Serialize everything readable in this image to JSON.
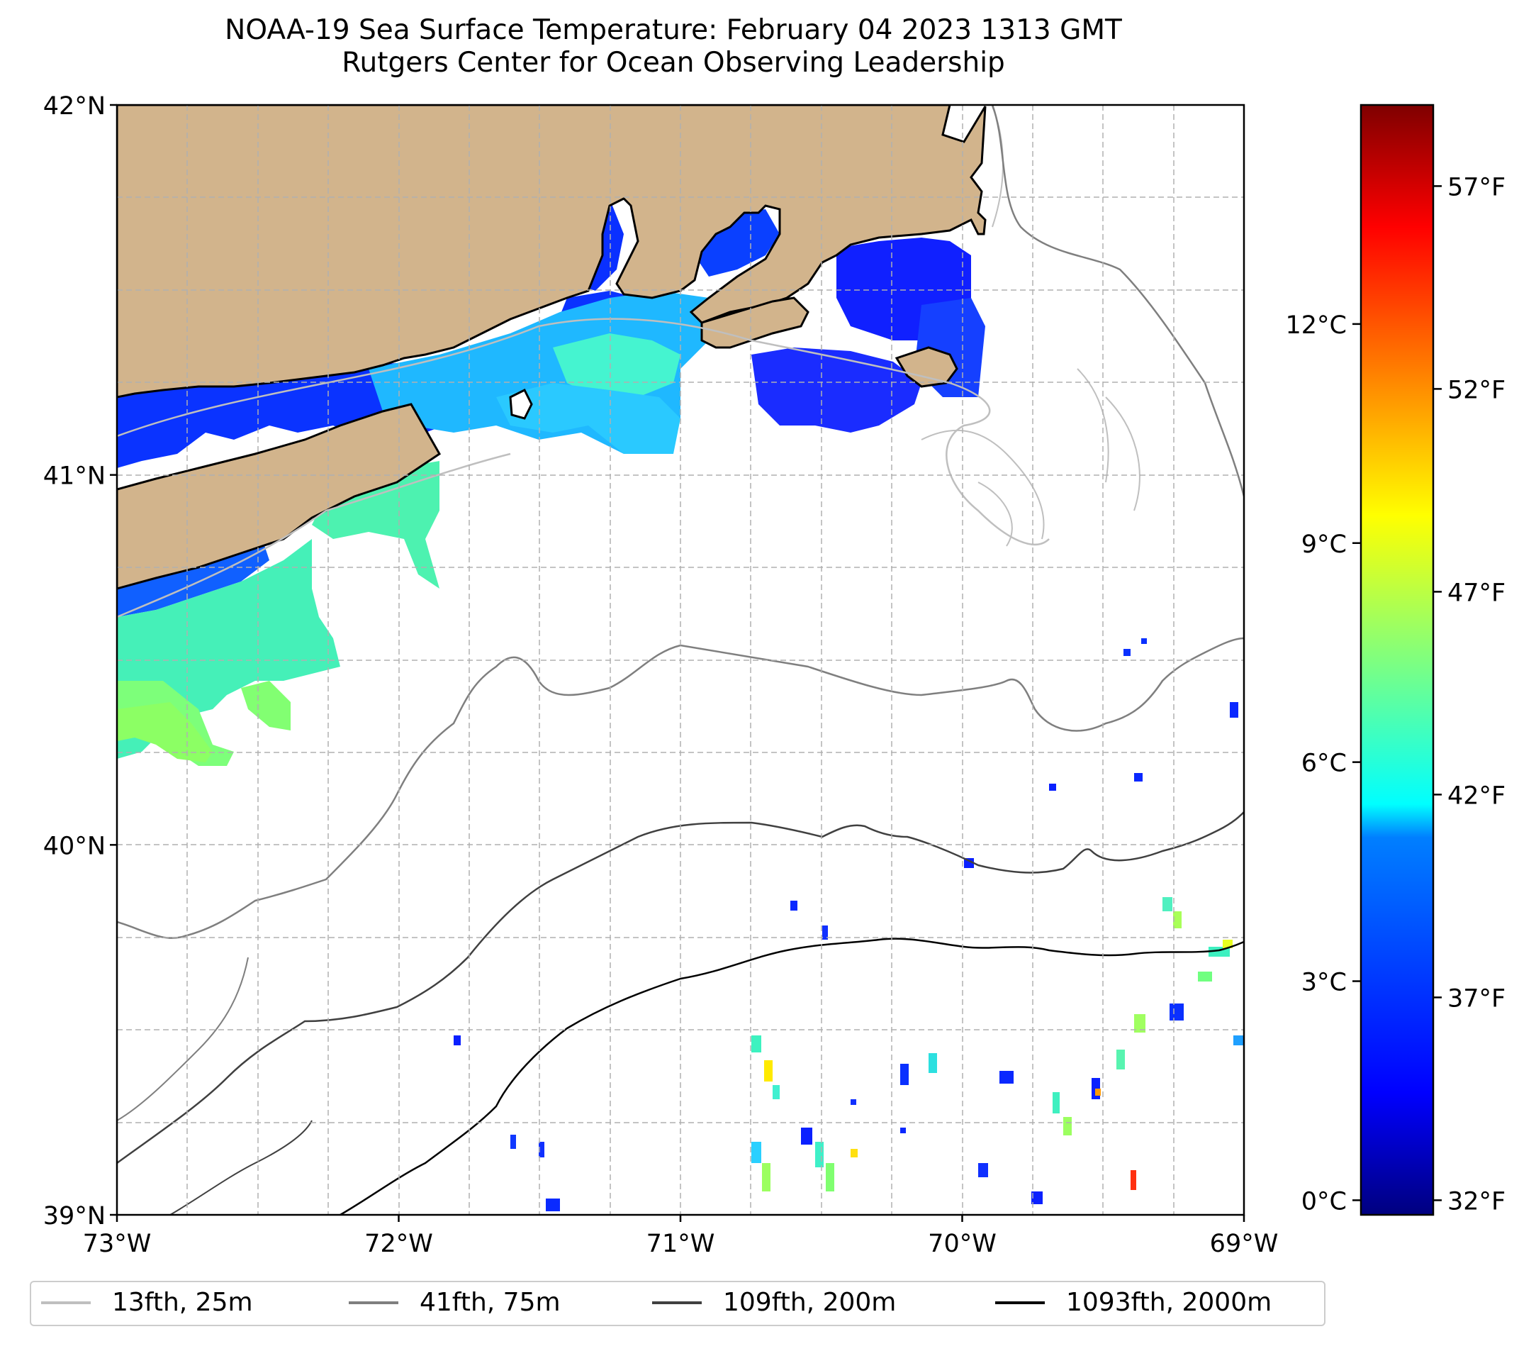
{
  "title": {
    "line1": "NOAA-19 Sea Surface Temperature: February 04 2023 1313 GMT",
    "line2": "Rutgers Center for Ocean Observing Leadership"
  },
  "map": {
    "extent": {
      "lon": [
        -73,
        -69
      ],
      "lat": [
        39,
        42
      ]
    },
    "lat_ticks": [
      {
        "value": 42,
        "label": "42°N"
      },
      {
        "value": 41,
        "label": "41°N"
      },
      {
        "value": 40,
        "label": "40°N"
      },
      {
        "value": 39,
        "label": "39°N"
      }
    ],
    "lon_ticks": [
      {
        "value": -73,
        "label": "73°W"
      },
      {
        "value": -72,
        "label": "72°W"
      },
      {
        "value": -71,
        "label": "71°W"
      },
      {
        "value": -70,
        "label": "70°W"
      },
      {
        "value": -69,
        "label": "69°W"
      }
    ],
    "gridlines": true,
    "colors": {
      "land": "#d2b48c",
      "coast": "#000000",
      "grid": "#b0b0b0"
    }
  },
  "colorbar": {
    "range_c": [
      -0.2,
      15.0
    ],
    "celsius_ticks": [
      {
        "value": 0,
        "label": "0°C"
      },
      {
        "value": 3,
        "label": "3°C"
      },
      {
        "value": 6,
        "label": "6°C"
      },
      {
        "value": 9,
        "label": "9°C"
      },
      {
        "value": 12,
        "label": "12°C"
      }
    ],
    "fahrenheit_ticks": [
      {
        "value": 32,
        "label": "32°F"
      },
      {
        "value": 37,
        "label": "37°F"
      },
      {
        "value": 42,
        "label": "42°F"
      },
      {
        "value": 47,
        "label": "47°F"
      },
      {
        "value": 52,
        "label": "52°F"
      },
      {
        "value": 57,
        "label": "57°F"
      }
    ],
    "colormap": [
      "#00007f",
      "#0000ff",
      "#007fff",
      "#00ffff",
      "#7fff7f",
      "#ffff00",
      "#ff7f00",
      "#ff0000",
      "#7f0000"
    ]
  },
  "legend": {
    "items": [
      {
        "label": "13fth, 25m",
        "color": "#bfbfbf"
      },
      {
        "label": "41fth, 75m",
        "color": "#7f7f7f"
      },
      {
        "label": "109fth, 200m",
        "color": "#404040"
      },
      {
        "label": "1093fth, 2000m",
        "color": "#000000"
      }
    ]
  }
}
